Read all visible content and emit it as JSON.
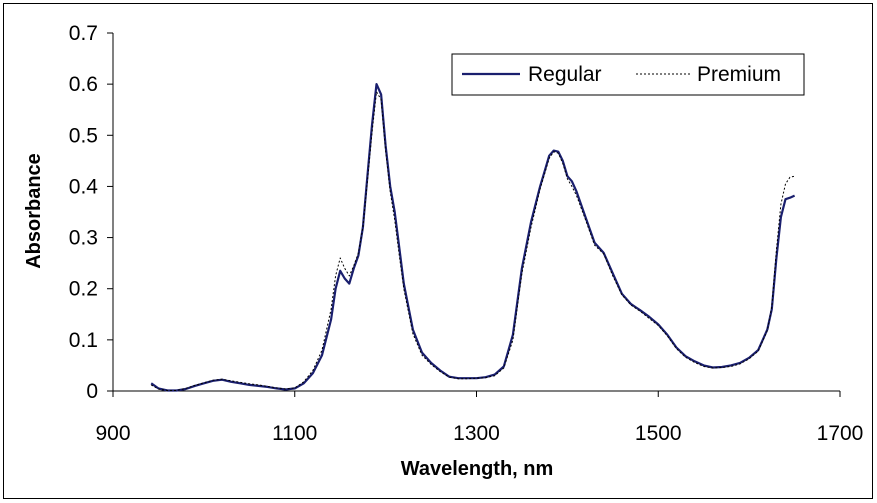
{
  "chart_data": {
    "type": "line",
    "xlabel": "Wavelength, nm",
    "ylabel": "Absorbance",
    "xlim": [
      900,
      1700
    ],
    "ylim": [
      0,
      0.7
    ],
    "xticks": [
      "900",
      "1100",
      "1300",
      "1500",
      "1700"
    ],
    "yticks": [
      "0",
      "0.1",
      "0.2",
      "0.3",
      "0.4",
      "0.5",
      "0.6",
      "0.7"
    ],
    "grid": false,
    "legend_position": "top-right",
    "series": [
      {
        "name": "Regular",
        "color": "#1a1f6e",
        "style": "solid",
        "x": [
          942,
          950,
          960,
          970,
          980,
          990,
          1000,
          1010,
          1020,
          1030,
          1040,
          1050,
          1060,
          1070,
          1080,
          1090,
          1100,
          1110,
          1120,
          1130,
          1140,
          1145,
          1150,
          1155,
          1160,
          1165,
          1170,
          1175,
          1180,
          1185,
          1190,
          1195,
          1200,
          1205,
          1210,
          1215,
          1220,
          1230,
          1240,
          1250,
          1260,
          1270,
          1280,
          1290,
          1300,
          1310,
          1320,
          1330,
          1340,
          1350,
          1360,
          1370,
          1375,
          1380,
          1385,
          1390,
          1395,
          1400,
          1405,
          1410,
          1420,
          1430,
          1440,
          1450,
          1460,
          1470,
          1480,
          1490,
          1500,
          1510,
          1520,
          1530,
          1540,
          1550,
          1560,
          1570,
          1580,
          1590,
          1600,
          1610,
          1620,
          1625,
          1630,
          1635,
          1640,
          1645,
          1650
        ],
        "y": [
          0.015,
          0.005,
          0.001,
          0.001,
          0.004,
          0.01,
          0.015,
          0.02,
          0.022,
          0.018,
          0.015,
          0.012,
          0.01,
          0.008,
          0.005,
          0.003,
          0.005,
          0.015,
          0.035,
          0.07,
          0.14,
          0.2,
          0.235,
          0.22,
          0.21,
          0.24,
          0.265,
          0.32,
          0.42,
          0.52,
          0.6,
          0.58,
          0.48,
          0.4,
          0.35,
          0.28,
          0.21,
          0.12,
          0.075,
          0.055,
          0.04,
          0.028,
          0.025,
          0.025,
          0.025,
          0.027,
          0.032,
          0.048,
          0.11,
          0.24,
          0.33,
          0.4,
          0.43,
          0.46,
          0.47,
          0.468,
          0.45,
          0.42,
          0.41,
          0.39,
          0.34,
          0.29,
          0.27,
          0.23,
          0.19,
          0.17,
          0.158,
          0.145,
          0.13,
          0.11,
          0.085,
          0.068,
          0.058,
          0.05,
          0.046,
          0.047,
          0.05,
          0.055,
          0.065,
          0.08,
          0.12,
          0.16,
          0.26,
          0.34,
          0.375,
          0.378,
          0.382
        ]
      },
      {
        "name": "Premium",
        "color": "#000000",
        "style": "dotted",
        "x": [
          942,
          950,
          960,
          970,
          980,
          990,
          1000,
          1010,
          1020,
          1030,
          1040,
          1050,
          1060,
          1070,
          1080,
          1090,
          1100,
          1110,
          1120,
          1130,
          1140,
          1145,
          1150,
          1155,
          1160,
          1165,
          1170,
          1175,
          1180,
          1185,
          1190,
          1195,
          1200,
          1205,
          1210,
          1215,
          1220,
          1230,
          1240,
          1250,
          1260,
          1270,
          1280,
          1290,
          1300,
          1310,
          1320,
          1330,
          1340,
          1350,
          1360,
          1370,
          1375,
          1380,
          1385,
          1390,
          1395,
          1400,
          1405,
          1410,
          1420,
          1430,
          1440,
          1450,
          1460,
          1470,
          1480,
          1490,
          1500,
          1510,
          1520,
          1530,
          1540,
          1550,
          1560,
          1570,
          1580,
          1590,
          1600,
          1610,
          1620,
          1625,
          1630,
          1635,
          1640,
          1645,
          1650
        ],
        "y": [
          0.012,
          0.004,
          0.001,
          0.001,
          0.005,
          0.011,
          0.016,
          0.021,
          0.023,
          0.02,
          0.017,
          0.014,
          0.012,
          0.009,
          0.006,
          0.004,
          0.006,
          0.018,
          0.04,
          0.08,
          0.16,
          0.225,
          0.26,
          0.24,
          0.225,
          0.245,
          0.27,
          0.32,
          0.41,
          0.505,
          0.585,
          0.57,
          0.47,
          0.39,
          0.335,
          0.265,
          0.2,
          0.112,
          0.07,
          0.052,
          0.038,
          0.027,
          0.024,
          0.024,
          0.025,
          0.026,
          0.03,
          0.045,
          0.1,
          0.23,
          0.32,
          0.395,
          0.425,
          0.455,
          0.468,
          0.465,
          0.445,
          0.415,
          0.4,
          0.382,
          0.335,
          0.285,
          0.268,
          0.225,
          0.188,
          0.168,
          0.156,
          0.142,
          0.128,
          0.108,
          0.083,
          0.066,
          0.056,
          0.048,
          0.045,
          0.046,
          0.048,
          0.053,
          0.063,
          0.078,
          0.118,
          0.165,
          0.275,
          0.365,
          0.405,
          0.418,
          0.42
        ]
      }
    ]
  }
}
